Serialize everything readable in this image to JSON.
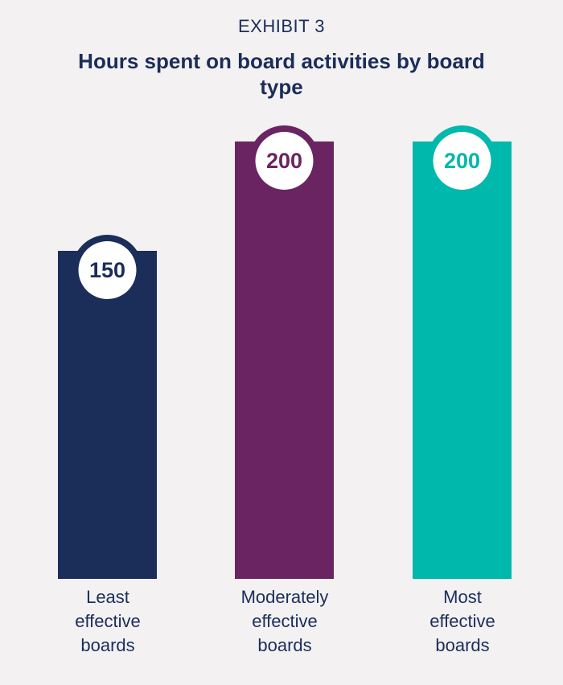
{
  "header": {
    "exhibit": "EXHIBIT 3",
    "title": "Hours spent on board activities by board type"
  },
  "chart_data": {
    "type": "bar",
    "categories": [
      "Least effective boards",
      "Moderately effective boards",
      "Most effective boards"
    ],
    "category_lines": [
      [
        "Least",
        "effective",
        "boards"
      ],
      [
        "Moderately",
        "effective",
        "boards"
      ],
      [
        "Most",
        "effective",
        "boards"
      ]
    ],
    "values": [
      150,
      200,
      200
    ],
    "colors": [
      "#1b2d59",
      "#6a2462",
      "#00b8ab"
    ],
    "ylim": [
      0,
      200
    ],
    "value_labels": [
      "150",
      "200",
      "200"
    ]
  }
}
